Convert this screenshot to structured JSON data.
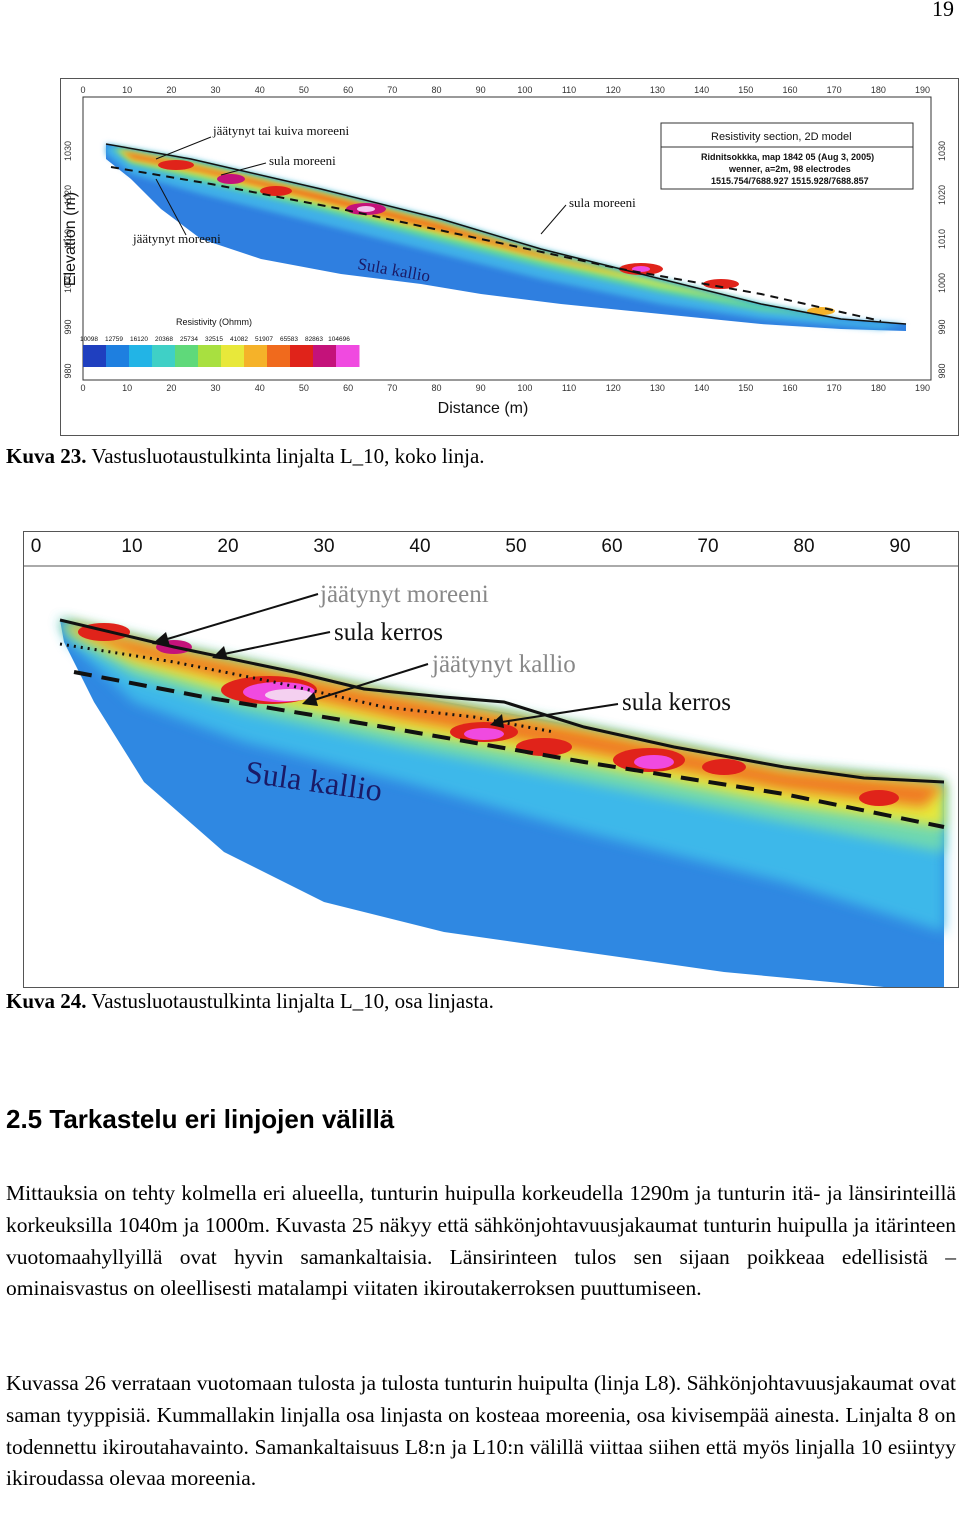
{
  "page_number": "19",
  "figure23": {
    "distance_ticks": [
      "0",
      "10",
      "20",
      "30",
      "40",
      "50",
      "60",
      "70",
      "80",
      "90",
      "100",
      "110",
      "120",
      "130",
      "140",
      "150",
      "160",
      "170",
      "180",
      "190"
    ],
    "elevation_ticks": [
      "1030",
      "1020",
      "1010",
      "1000",
      "990",
      "980"
    ],
    "ylabel": "Elevation (m)",
    "xlabel": "Distance (m)",
    "info_title": "Resistivity section, 2D model",
    "info_lines": [
      "Ridnitsokkka, map 1842 05 (Aug 3, 2005)",
      "wenner, a=2m, 98 electrodes",
      "1515.754/7688.927  1515.928/7688.857"
    ],
    "legend_title": "Resistivity (Ohmm)",
    "legend_values": [
      "10098",
      "12759",
      "16120",
      "20368",
      "25734",
      "32515",
      "41082",
      "51907",
      "65583",
      "82863",
      "104696"
    ],
    "legend_colors": [
      "#1f3fbf",
      "#1e7fe0",
      "#22b4e6",
      "#3fd0c6",
      "#5fd97a",
      "#a8e040",
      "#e8e83a",
      "#f5b229",
      "#f06a1d",
      "#e0231a",
      "#c4127a",
      "#f04ae0"
    ],
    "annotations": {
      "jaatynyt_tai_kuiva": "jäätynyt tai kuiva moreeni",
      "sula_moreeni_1": "sula moreeni",
      "sula_moreeni_2": "sula moreeni",
      "jaatynyt_moreeni": "jäätynyt moreeni",
      "sula_kallio": "Sula kallio"
    },
    "caption_label": "Kuva 23.",
    "caption_text": " Vastusluotaustulkinta linjalta L_10, koko linja."
  },
  "figure24": {
    "distance_ticks": [
      "0",
      "10",
      "20",
      "30",
      "40",
      "50",
      "60",
      "70",
      "80",
      "90"
    ],
    "annotations": {
      "jaatynyt_moreeni": "jäätynyt moreeni",
      "sula_kerros_1": "sula kerros",
      "jaatynyt_kallio": "jäätynyt kallio",
      "sula_kerros_2": "sula kerros",
      "sula_kallio": "Sula kallio"
    },
    "caption_label": "Kuva 24.",
    "caption_text": " Vastusluotaustulkinta linjalta L_10, osa linjasta."
  },
  "section_heading": "2.5 Tarkastelu eri linjojen välillä",
  "paragraphs": [
    "Mittauksia on tehty kolmella eri alueella, tunturin huipulla korkeudella 1290m ja tunturin itä- ja länsirinteillä korkeuksilla 1040m ja 1000m. Kuvasta 25 näkyy että sähkönjohtavuusjakaumat tunturin huipulla ja itärinteen vuotomaahyllyillä ovat hyvin samankaltaisia. Länsirinteen tulos sen sijaan poikkeaa edellisistä – ominaisvastus on oleellisesti matalampi viitaten ikiroutakerroksen puuttumiseen.",
    "Kuvassa 26 verrataan vuotomaan tulosta ja tulosta tunturin huipulta (linja L8). Sähkönjohtavuusjakaumat ovat saman tyyppisiä. Kummallakin linjalla osa linjasta on kosteaa moreenia, osa kivisempää ainesta. Linjalta 8 on todennettu ikiroutahavainto. Samankaltaisuus L8:n ja L10:n välillä viittaa siihen että myös linjalla 10 esiintyy ikiroudassa olevaa moreenia."
  ]
}
